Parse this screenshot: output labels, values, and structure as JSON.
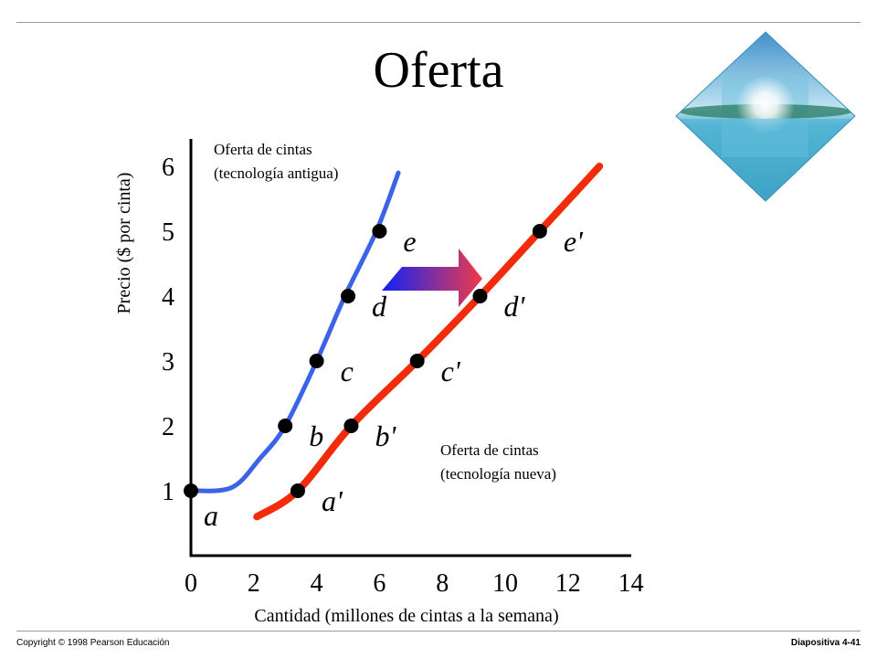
{
  "slide": {
    "title": "Oferta",
    "copyright": "Copyright © 1998 Pearson Educación",
    "slide_number": "Diapositiva 4-41"
  },
  "logo": {
    "name": "tropical-beach-diamond-logo"
  },
  "colors": {
    "old_supply": "#3b63e8",
    "new_supply": "#f22b0a",
    "arrow_start": "#0d22f5",
    "arrow_end": "#f03a4a"
  },
  "chart_data": {
    "type": "line",
    "xlabel": "Cantidad (millones de cintas a la semana)",
    "ylabel": "Precio ($ por cinta)",
    "x_ticks": [
      "0",
      "2",
      "4",
      "6",
      "8",
      "10",
      "12",
      "14"
    ],
    "y_ticks": [
      "1",
      "2",
      "3",
      "4",
      "5",
      "6"
    ],
    "xlim": [
      0,
      14
    ],
    "ylim": [
      0,
      6
    ],
    "series": [
      {
        "name": "Oferta de cintas (tecnología antigua)",
        "label_lines": [
          "Oferta de cintas",
          "(tecnología antigua)"
        ],
        "color": "#3b63e8",
        "curve": [
          [
            0,
            1
          ],
          [
            1.3,
            1.05
          ],
          [
            2.2,
            1.5
          ],
          [
            3.0,
            2.0
          ],
          [
            4.0,
            3.0
          ],
          [
            4.9,
            4.0
          ],
          [
            5.9,
            5.0
          ],
          [
            6.6,
            5.9
          ]
        ],
        "points": [
          {
            "label": "a",
            "x": 0,
            "y": 1
          },
          {
            "label": "b",
            "x": 3,
            "y": 2
          },
          {
            "label": "c",
            "x": 4,
            "y": 3
          },
          {
            "label": "d",
            "x": 5,
            "y": 4
          },
          {
            "label": "e",
            "x": 6,
            "y": 5
          }
        ]
      },
      {
        "name": "Oferta de cintas (tecnología nueva)",
        "label_lines": [
          "Oferta de cintas",
          "(tecnología nueva)"
        ],
        "color": "#f22b0a",
        "curve": [
          [
            2.1,
            0.6
          ],
          [
            3.4,
            1.0
          ],
          [
            5.1,
            2.0
          ],
          [
            7.2,
            3.0
          ],
          [
            9.2,
            4.0
          ],
          [
            11.1,
            5.0
          ],
          [
            13.0,
            6.0
          ]
        ],
        "points": [
          {
            "label": "a'",
            "x": 3.4,
            "y": 1
          },
          {
            "label": "b'",
            "x": 5.1,
            "y": 2
          },
          {
            "label": "c'",
            "x": 7.2,
            "y": 3
          },
          {
            "label": "d'",
            "x": 9.2,
            "y": 4
          },
          {
            "label": "e'",
            "x": 11.1,
            "y": 5
          }
        ]
      }
    ]
  }
}
